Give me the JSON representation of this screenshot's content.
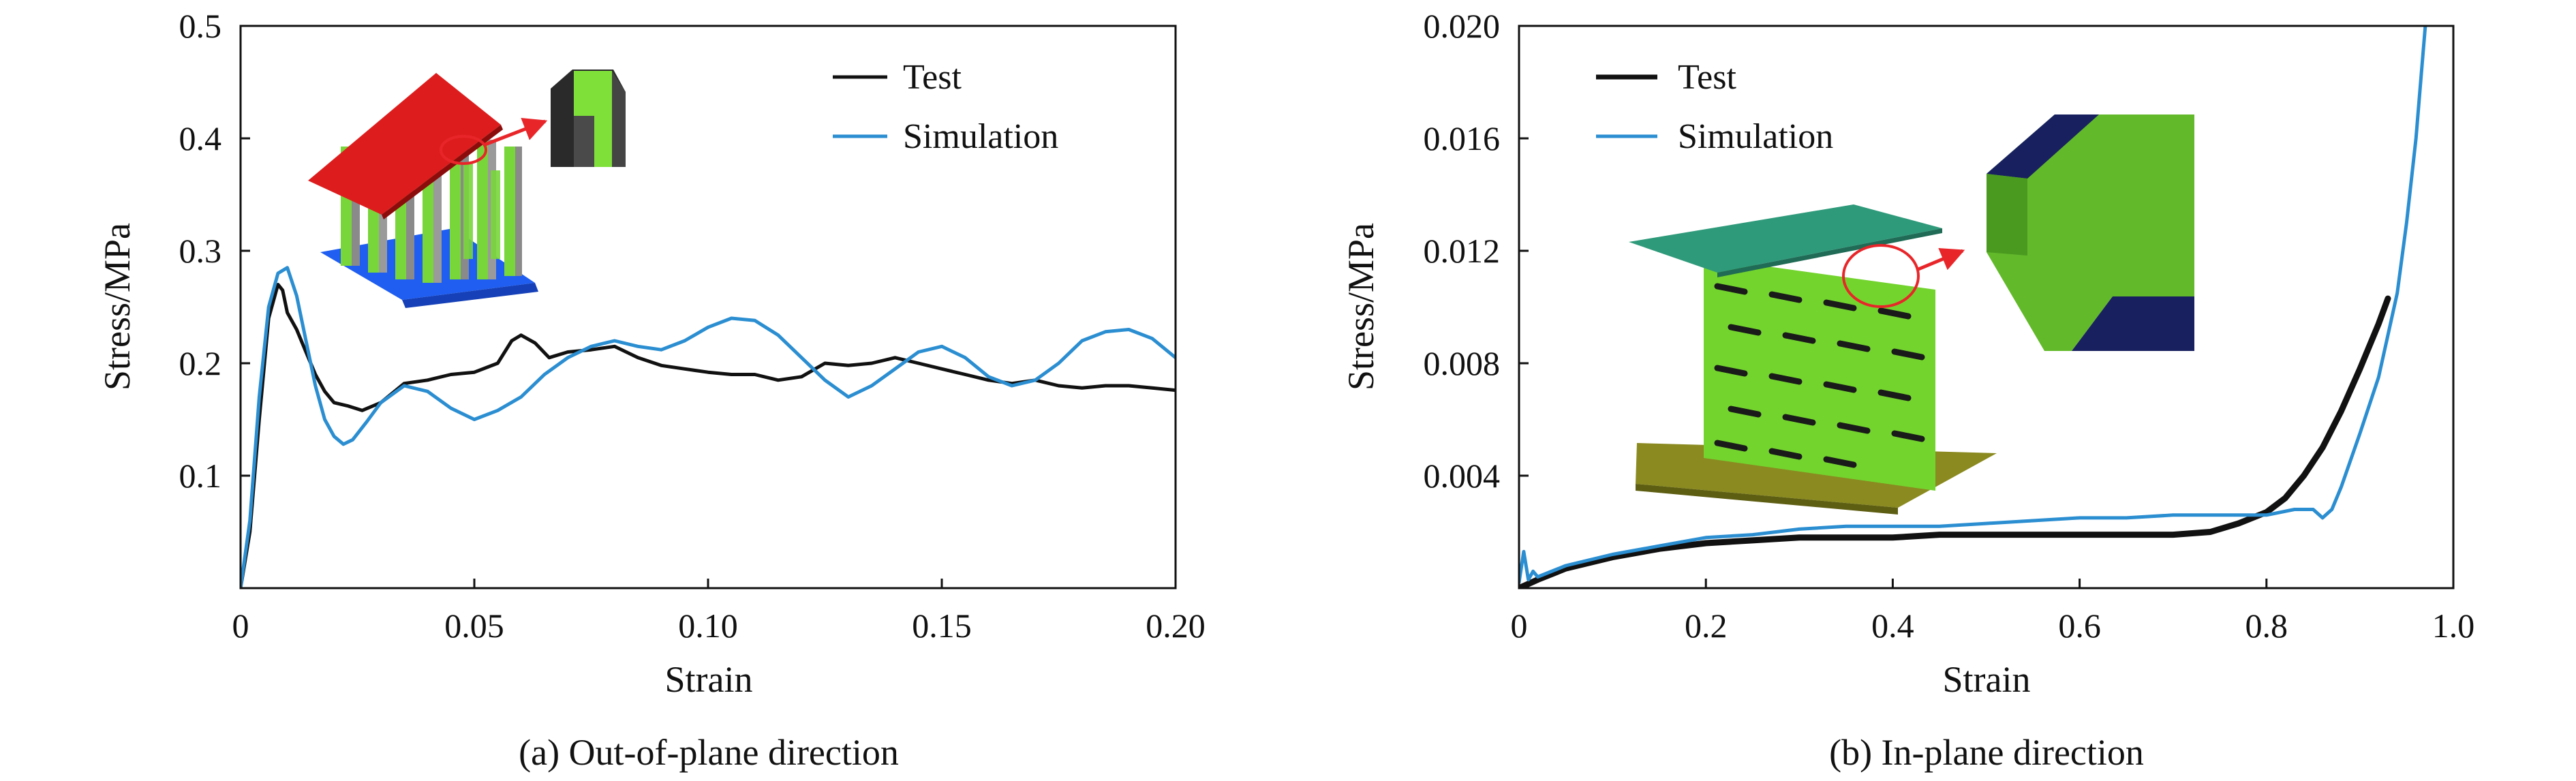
{
  "chart_data": [
    {
      "type": "line",
      "caption": "(a) Out-of-plane direction",
      "xlabel": "Strain",
      "ylabel": "Stress/MPa",
      "xlim": [
        0,
        0.2
      ],
      "ylim": [
        0,
        0.5
      ],
      "xticks": [
        "0",
        "0.05",
        "0.10",
        "0.15",
        "0.20"
      ],
      "xtick_values": [
        0,
        0.05,
        0.1,
        0.15,
        0.2
      ],
      "yticks": [
        "0.1",
        "0.2",
        "0.3",
        "0.4",
        "0.5"
      ],
      "ytick_values": [
        0.1,
        0.2,
        0.3,
        0.4,
        0.5
      ],
      "zero_label": "0",
      "grid": false,
      "legend_position": "top-right",
      "series": [
        {
          "name": "Test",
          "color": "#111111",
          "x": [
            0,
            0.002,
            0.004,
            0.006,
            0.008,
            0.009,
            0.01,
            0.012,
            0.014,
            0.016,
            0.018,
            0.02,
            0.023,
            0.026,
            0.03,
            0.035,
            0.04,
            0.045,
            0.05,
            0.055,
            0.058,
            0.06,
            0.063,
            0.066,
            0.07,
            0.075,
            0.08,
            0.085,
            0.09,
            0.095,
            0.1,
            0.105,
            0.11,
            0.115,
            0.12,
            0.125,
            0.13,
            0.135,
            0.14,
            0.145,
            0.15,
            0.155,
            0.16,
            0.165,
            0.17,
            0.175,
            0.18,
            0.185,
            0.19,
            0.195,
            0.2
          ],
          "y": [
            0,
            0.05,
            0.15,
            0.24,
            0.27,
            0.265,
            0.245,
            0.23,
            0.21,
            0.19,
            0.175,
            0.165,
            0.162,
            0.158,
            0.165,
            0.182,
            0.185,
            0.19,
            0.192,
            0.2,
            0.22,
            0.225,
            0.218,
            0.205,
            0.21,
            0.212,
            0.215,
            0.205,
            0.198,
            0.195,
            0.192,
            0.19,
            0.19,
            0.185,
            0.188,
            0.2,
            0.198,
            0.2,
            0.205,
            0.2,
            0.195,
            0.19,
            0.185,
            0.182,
            0.185,
            0.18,
            0.178,
            0.18,
            0.18,
            0.178,
            0.176
          ]
        },
        {
          "name": "Simulation",
          "color": "#2b8ed1",
          "x": [
            0,
            0.002,
            0.004,
            0.006,
            0.008,
            0.01,
            0.012,
            0.014,
            0.016,
            0.018,
            0.02,
            0.022,
            0.024,
            0.027,
            0.03,
            0.035,
            0.04,
            0.045,
            0.05,
            0.055,
            0.06,
            0.065,
            0.07,
            0.075,
            0.08,
            0.085,
            0.09,
            0.095,
            0.1,
            0.105,
            0.11,
            0.115,
            0.12,
            0.125,
            0.13,
            0.135,
            0.14,
            0.145,
            0.15,
            0.155,
            0.16,
            0.165,
            0.17,
            0.175,
            0.18,
            0.185,
            0.19,
            0.195,
            0.2
          ],
          "y": [
            0,
            0.06,
            0.17,
            0.25,
            0.28,
            0.285,
            0.26,
            0.22,
            0.18,
            0.15,
            0.135,
            0.128,
            0.132,
            0.148,
            0.165,
            0.18,
            0.175,
            0.16,
            0.15,
            0.158,
            0.17,
            0.19,
            0.205,
            0.215,
            0.22,
            0.215,
            0.212,
            0.22,
            0.232,
            0.24,
            0.238,
            0.225,
            0.205,
            0.185,
            0.17,
            0.18,
            0.195,
            0.21,
            0.215,
            0.205,
            0.188,
            0.18,
            0.185,
            0.2,
            0.22,
            0.228,
            0.23,
            0.222,
            0.205
          ]
        }
      ]
    },
    {
      "type": "line",
      "caption": "(b) In-plane direction",
      "xlabel": "Strain",
      "ylabel": "Stress/MPa",
      "xlim": [
        0,
        1.0
      ],
      "ylim": [
        0,
        0.02
      ],
      "xticks": [
        "0.2",
        "0.4",
        "0.6",
        "0.8",
        "1.0"
      ],
      "xtick_values": [
        0.2,
        0.4,
        0.6,
        0.8,
        1.0
      ],
      "yticks": [
        "0.004",
        "0.008",
        "0.012",
        "0.016",
        "0.020"
      ],
      "ytick_values": [
        0.004,
        0.008,
        0.012,
        0.016,
        0.02
      ],
      "zero_label": "0",
      "grid": false,
      "legend_position": "top-left",
      "series": [
        {
          "name": "Test",
          "color": "#111111",
          "x": [
            0,
            0.02,
            0.05,
            0.1,
            0.15,
            0.2,
            0.25,
            0.3,
            0.35,
            0.4,
            0.45,
            0.5,
            0.55,
            0.6,
            0.65,
            0.7,
            0.74,
            0.77,
            0.8,
            0.82,
            0.84,
            0.86,
            0.88,
            0.9,
            0.92,
            0.93
          ],
          "y": [
            0,
            0.0003,
            0.0007,
            0.0011,
            0.0014,
            0.0016,
            0.0017,
            0.0018,
            0.0018,
            0.0018,
            0.0019,
            0.0019,
            0.0019,
            0.0019,
            0.0019,
            0.0019,
            0.002,
            0.0023,
            0.0027,
            0.0032,
            0.004,
            0.005,
            0.0063,
            0.0078,
            0.0094,
            0.0103
          ]
        },
        {
          "name": "Simulation",
          "color": "#2b8ed1",
          "x": [
            0,
            0.005,
            0.01,
            0.015,
            0.02,
            0.05,
            0.1,
            0.15,
            0.2,
            0.25,
            0.3,
            0.35,
            0.4,
            0.45,
            0.5,
            0.55,
            0.6,
            0.65,
            0.7,
            0.75,
            0.8,
            0.83,
            0.85,
            0.86,
            0.87,
            0.88,
            0.9,
            0.92,
            0.93,
            0.94,
            0.95,
            0.96,
            0.965,
            0.97
          ],
          "y": [
            0.0002,
            0.0013,
            0.0003,
            0.0006,
            0.0004,
            0.0008,
            0.0012,
            0.0015,
            0.0018,
            0.0019,
            0.0021,
            0.0022,
            0.0022,
            0.0022,
            0.0023,
            0.0024,
            0.0025,
            0.0025,
            0.0026,
            0.0026,
            0.0026,
            0.0028,
            0.0028,
            0.0025,
            0.0028,
            0.0036,
            0.0055,
            0.0075,
            0.009,
            0.0105,
            0.013,
            0.016,
            0.018,
            0.02
          ]
        }
      ]
    }
  ]
}
